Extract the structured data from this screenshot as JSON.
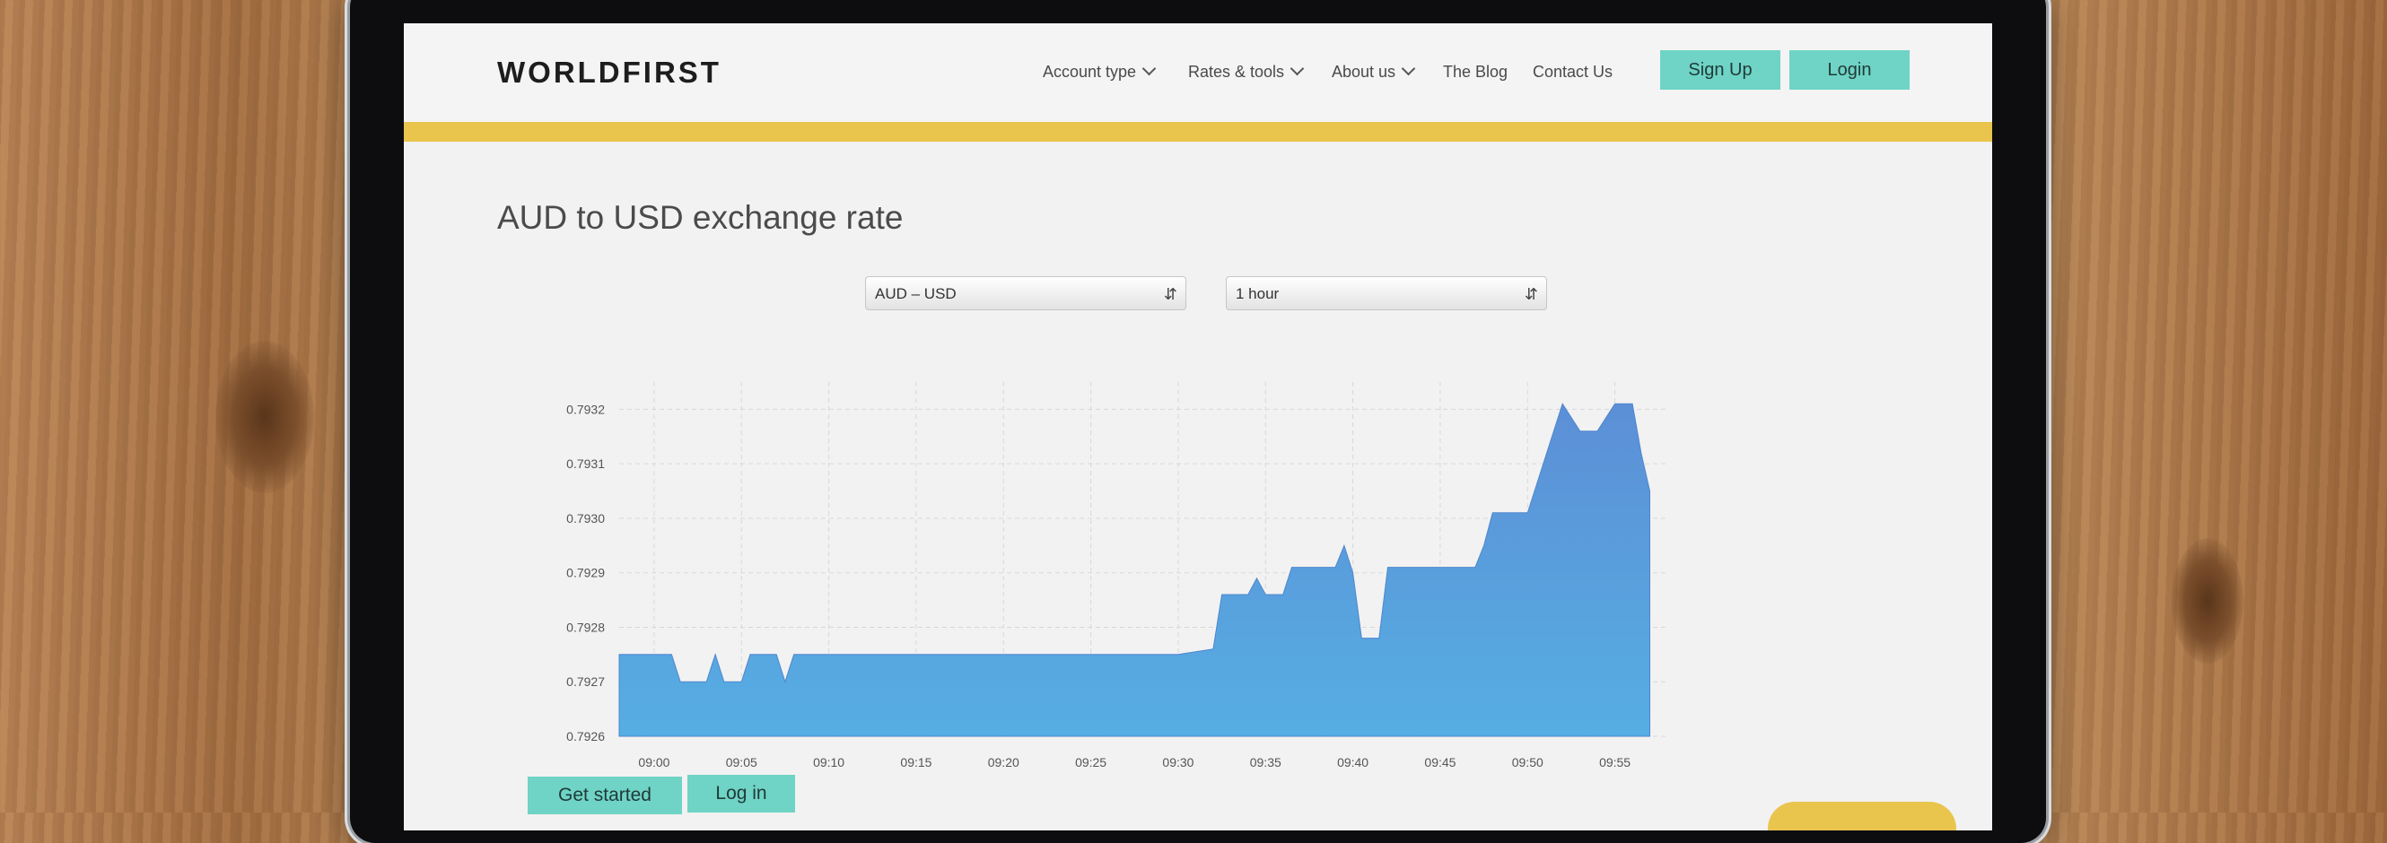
{
  "nav": {
    "logo": "WORLDFIRST",
    "items": [
      {
        "label": "Account type",
        "has_dropdown": true
      },
      {
        "label": "Rates & tools",
        "has_dropdown": true
      },
      {
        "label": "About us",
        "has_dropdown": true
      },
      {
        "label": "The Blog",
        "has_dropdown": false
      },
      {
        "label": "Contact Us",
        "has_dropdown": false
      }
    ],
    "signup_label": "Sign Up",
    "login_label": "Login"
  },
  "page": {
    "title": "AUD to USD exchange rate",
    "pair_select": "AUD – USD",
    "range_select": "1 hour"
  },
  "chart_data": {
    "type": "area",
    "title": "",
    "xlabel": "",
    "ylabel": "",
    "ylim": [
      0.7926,
      0.79325
    ],
    "y_ticks": [
      "0.7926",
      "0.7927",
      "0.7928",
      "0.7929",
      "0.7930",
      "0.7931",
      "0.7932"
    ],
    "x_ticks": [
      "09:00",
      "09:05",
      "09:10",
      "09:15",
      "09:20",
      "09:25",
      "09:30",
      "09:35",
      "09:40",
      "09:45",
      "09:50",
      "09:55"
    ],
    "grid": true,
    "fill_color": "#5ba6e2",
    "series": [
      {
        "x": [
          "08:58",
          "09:00",
          "09:01",
          "09:01.5",
          "09:02",
          "09:03",
          "09:03.5",
          "09:04",
          "09:05",
          "09:05.5",
          "09:07",
          "09:07.5",
          "09:08",
          "09:10",
          "09:15",
          "09:20",
          "09:25",
          "09:30",
          "09:32",
          "09:32.5",
          "09:33",
          "09:34",
          "09:34.5",
          "09:35",
          "09:36",
          "09:36.5",
          "09:37",
          "09:38",
          "09:39",
          "09:39.5",
          "09:40",
          "09:40.5",
          "09:41",
          "09:41.5",
          "09:42",
          "09:43",
          "09:45",
          "09:47",
          "09:47.5",
          "09:48",
          "09:49",
          "09:50",
          "09:51",
          "09:52",
          "09:53",
          "09:54",
          "09:55",
          "09:56",
          "09:56.5",
          "09:57"
        ],
        "y": [
          0.79275,
          0.79275,
          0.79275,
          0.7927,
          0.7927,
          0.7927,
          0.79275,
          0.7927,
          0.7927,
          0.79275,
          0.79275,
          0.7927,
          0.79275,
          0.79275,
          0.79275,
          0.79275,
          0.79275,
          0.79275,
          0.79276,
          0.79286,
          0.79286,
          0.79286,
          0.79289,
          0.79286,
          0.79286,
          0.79291,
          0.79291,
          0.79291,
          0.79291,
          0.79295,
          0.7929,
          0.79278,
          0.79278,
          0.79278,
          0.79291,
          0.79291,
          0.79291,
          0.79291,
          0.79295,
          0.79301,
          0.79301,
          0.79301,
          0.79311,
          0.79321,
          0.79316,
          0.79316,
          0.79321,
          0.79321,
          0.79312,
          0.79305
        ]
      }
    ]
  },
  "cta": {
    "get_started": "Get started",
    "login": "Log in"
  }
}
